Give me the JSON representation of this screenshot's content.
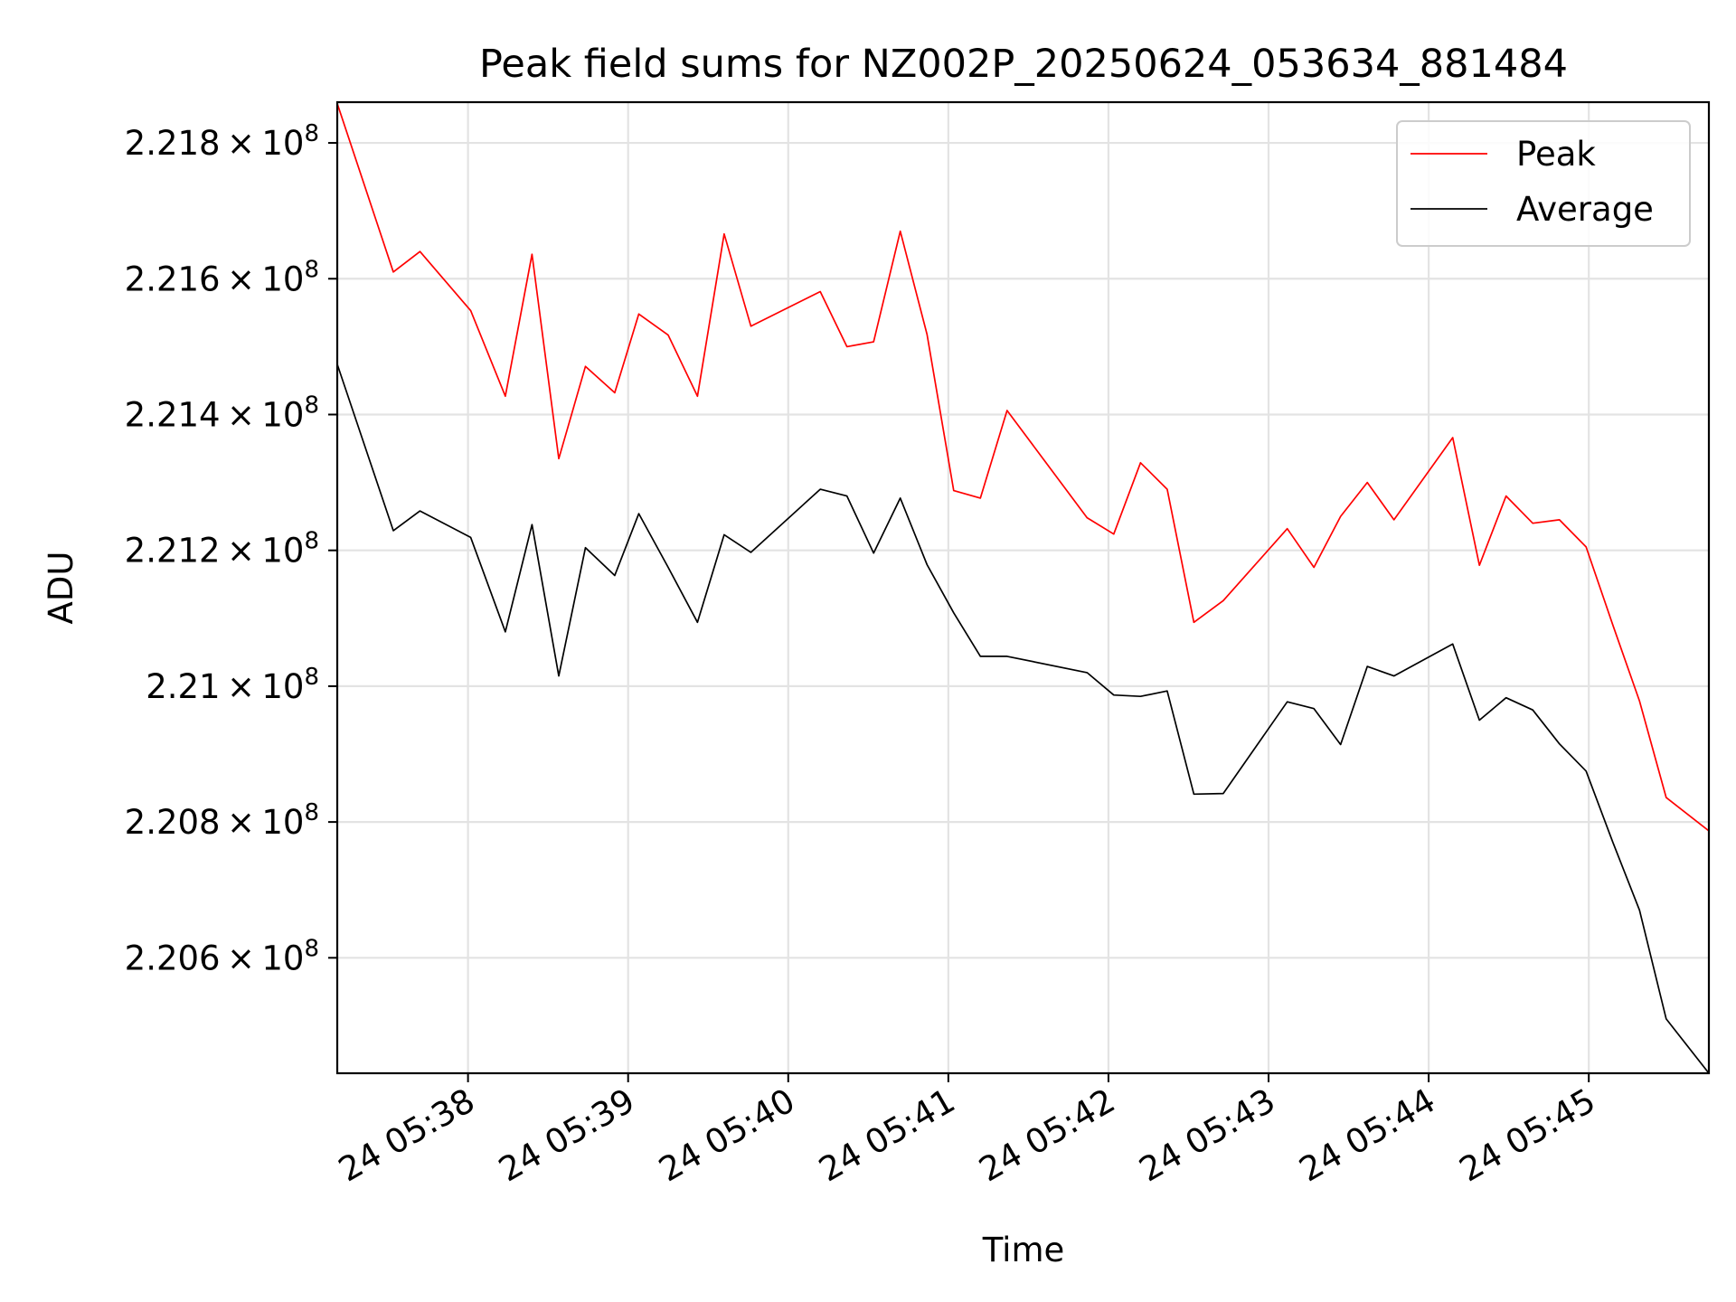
{
  "chart_data": {
    "type": "line",
    "title": "Peak field sums for NZ002P_20250624_053634_881484",
    "xlabel": "Time",
    "ylabel": "ADU",
    "xlim": [
      "05:37:11",
      "05:45:45"
    ],
    "ylim": [
      220430000,
      221860000
    ],
    "grid": true,
    "legend_position": "top-right",
    "x_tick_labels": [
      "24 05:38",
      "24 05:39",
      "24 05:40",
      "24 05:41",
      "24 05:42",
      "24 05:43",
      "24 05:44",
      "24 05:45"
    ],
    "y_ticks": [
      {
        "value": 221800000,
        "mantissa": "2.218",
        "exp": "8"
      },
      {
        "value": 221600000,
        "mantissa": "2.216",
        "exp": "8"
      },
      {
        "value": 221400000,
        "mantissa": "2.214",
        "exp": "8"
      },
      {
        "value": 221200000,
        "mantissa": "2.212",
        "exp": "8"
      },
      {
        "value": 221000000,
        "mantissa": "2.21",
        "exp": "8"
      },
      {
        "value": 220800000,
        "mantissa": "2.208",
        "exp": "8"
      },
      {
        "value": 220600000,
        "mantissa": "2.206",
        "exp": "8"
      }
    ],
    "x": [
      "05:37:11",
      "05:37:32",
      "05:37:42",
      "05:38:01",
      "05:38:14",
      "05:38:24",
      "05:38:34",
      "05:38:44",
      "05:38:55",
      "05:39:04",
      "05:39:15",
      "05:39:26",
      "05:39:36",
      "05:39:46",
      "05:40:12",
      "05:40:22",
      "05:40:32",
      "05:40:42",
      "05:40:52",
      "05:41:02",
      "05:41:12",
      "05:41:22",
      "05:41:52",
      "05:42:02",
      "05:42:12",
      "05:42:22",
      "05:42:32",
      "05:42:43",
      "05:43:07",
      "05:43:17",
      "05:43:27",
      "05:43:37",
      "05:43:47",
      "05:44:09",
      "05:44:19",
      "05:44:29",
      "05:44:39",
      "05:44:49",
      "05:44:59",
      "05:45:09",
      "05:45:19",
      "05:45:29",
      "05:45:45"
    ],
    "series": [
      {
        "name": "Peak",
        "color": "#ff0000",
        "values": [
          221858000,
          221610000,
          221640000,
          221553000,
          221427000,
          221636000,
          221335000,
          221471000,
          221432000,
          221548000,
          221517000,
          221427000,
          221666000,
          221530000,
          221581000,
          221500000,
          221507000,
          221670000,
          221518000,
          221288000,
          221277000,
          221406000,
          221248000,
          221224000,
          221329000,
          221290000,
          221094000,
          221126000,
          221232000,
          221175000,
          221250000,
          221300000,
          221245000,
          221366000,
          221178000,
          221280000,
          221240000,
          221245000,
          221205000,
          221090000,
          220978000,
          220836000,
          220787000
        ]
      },
      {
        "name": "Average",
        "color": "#000000",
        "values": [
          221474000,
          221229000,
          221258000,
          221219000,
          221080000,
          221238000,
          221015000,
          221204000,
          221163000,
          221254000,
          221175000,
          221094000,
          221223000,
          221197000,
          221290000,
          221280000,
          221196000,
          221277000,
          221179000,
          221108000,
          221044000,
          221044000,
          221020000,
          220987000,
          220985000,
          220993000,
          220841000,
          220842000,
          220977000,
          220967000,
          220914000,
          221029000,
          221015000,
          221062000,
          220950000,
          220983000,
          220965000,
          220915000,
          220875000,
          220770000,
          220670000,
          220510000,
          220430000
        ]
      }
    ]
  }
}
